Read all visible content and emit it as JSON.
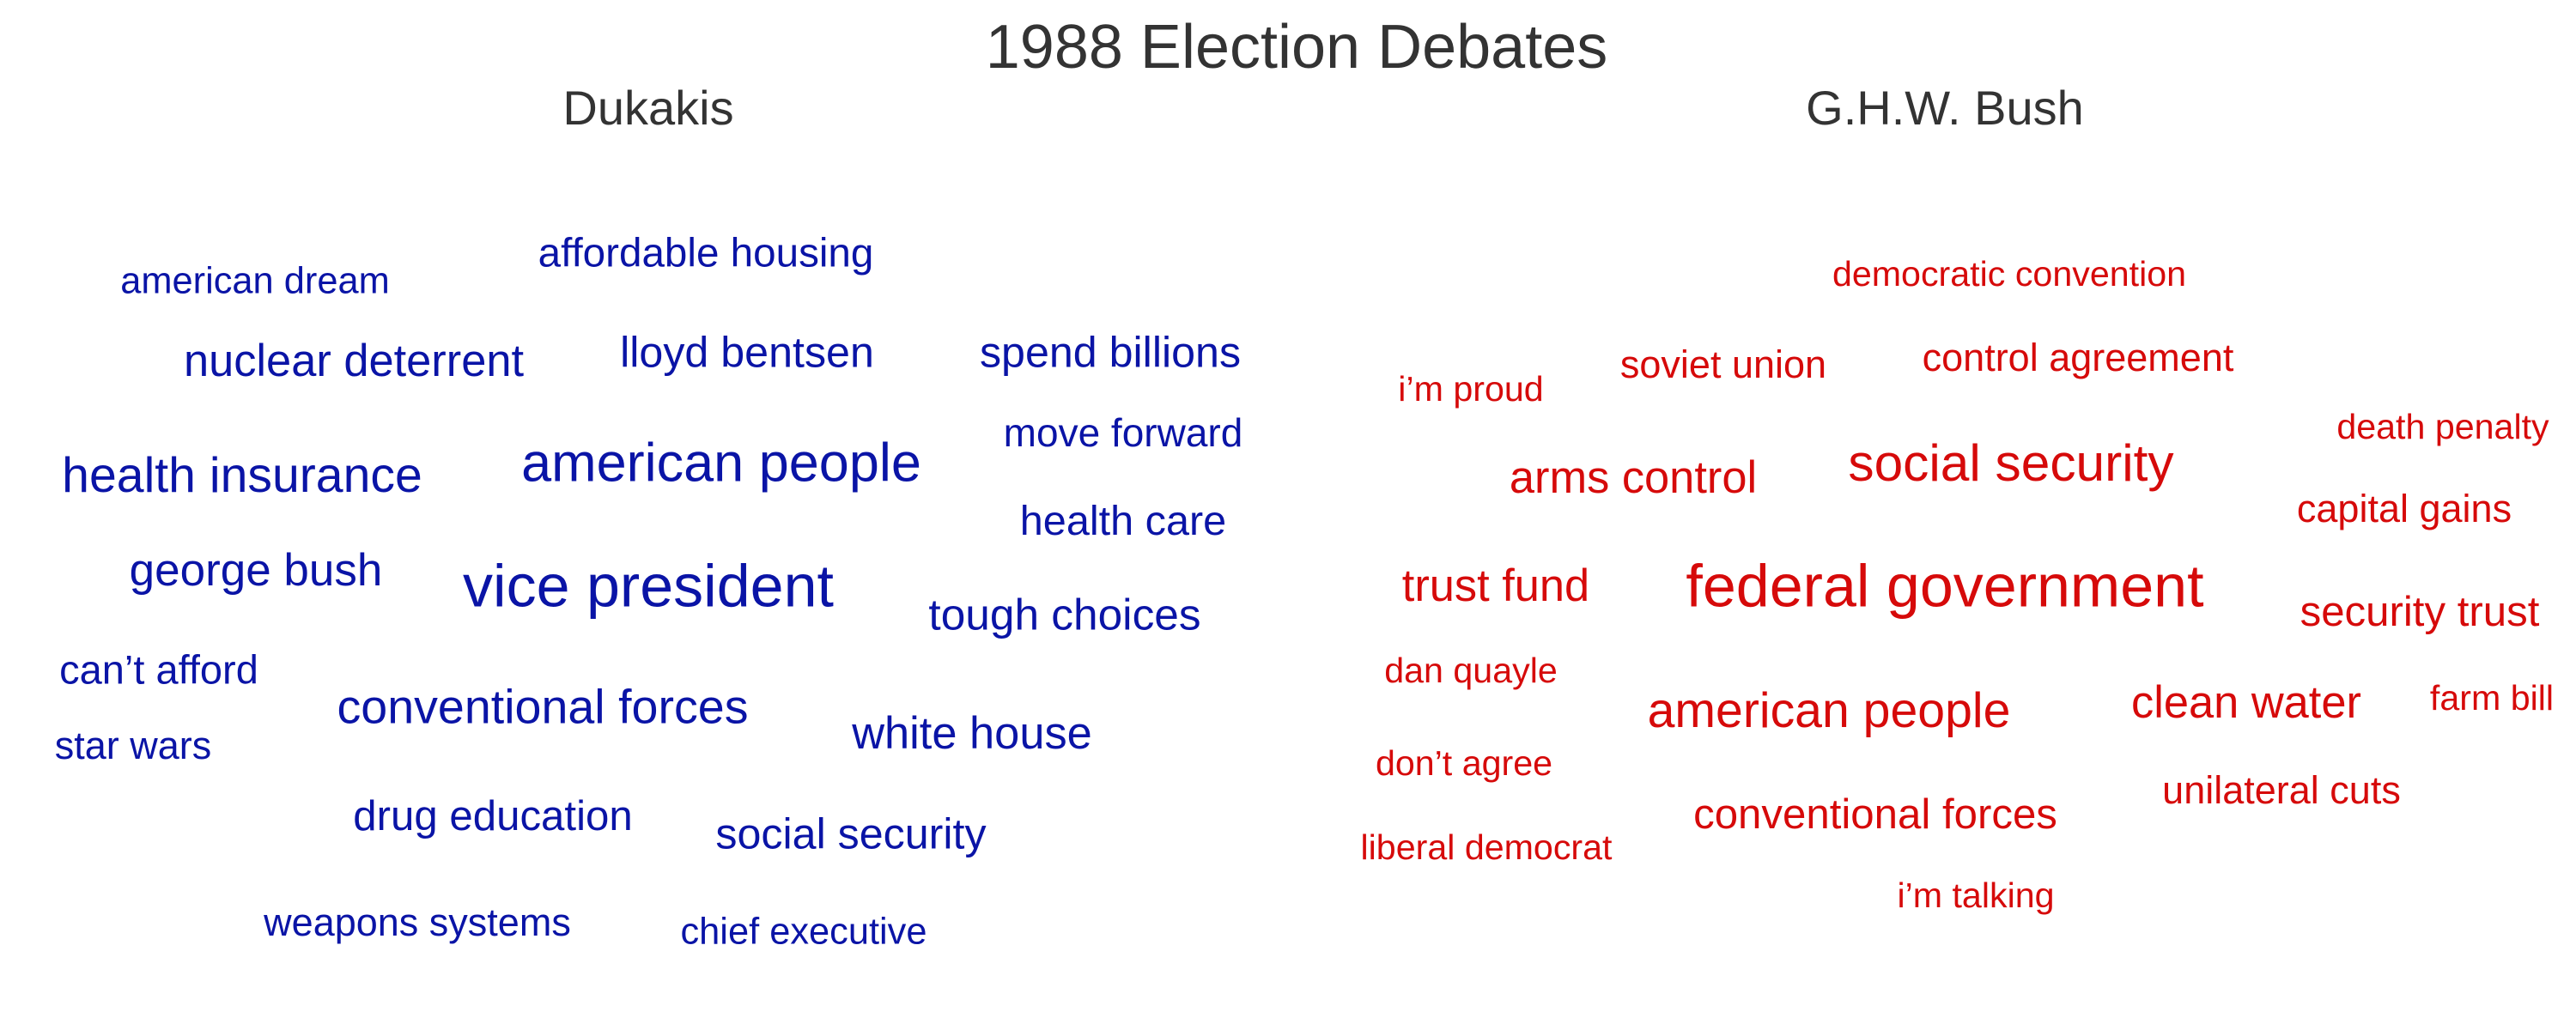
{
  "title": "1988 Election Debates",
  "chart_data": [
    {
      "type": "wordcloud",
      "title": "Dukakis",
      "color": "#0a14a6",
      "words": [
        {
          "text": "american dream",
          "weight": 0.17
        },
        {
          "text": "affordable housing",
          "weight": 0.3
        },
        {
          "text": "nuclear deterrent",
          "weight": 0.45
        },
        {
          "text": "lloyd bentsen",
          "weight": 0.38
        },
        {
          "text": "spend billions",
          "weight": 0.38
        },
        {
          "text": "move forward",
          "weight": 0.25
        },
        {
          "text": "health insurance",
          "weight": 0.6
        },
        {
          "text": "american people",
          "weight": 0.78
        },
        {
          "text": "health care",
          "weight": 0.33
        },
        {
          "text": "george bush",
          "weight": 0.47
        },
        {
          "text": "vice president",
          "weight": 1.0
        },
        {
          "text": "tough choices",
          "weight": 0.42
        },
        {
          "text": "can’t afford",
          "weight": 0.28
        },
        {
          "text": "conventional forces",
          "weight": 0.55
        },
        {
          "text": "star wars",
          "weight": 0.22
        },
        {
          "text": "white house",
          "weight": 0.45
        },
        {
          "text": "drug education",
          "weight": 0.35
        },
        {
          "text": "social security",
          "weight": 0.38
        },
        {
          "text": "weapons systems",
          "weight": 0.22
        },
        {
          "text": "chief executive",
          "weight": 0.17
        }
      ]
    },
    {
      "type": "wordcloud",
      "title": "G.H.W. Bush",
      "color": "#d60a0a",
      "words": [
        {
          "text": "democratic convention",
          "weight": 0.1
        },
        {
          "text": "i’m proud",
          "weight": 0.1
        },
        {
          "text": "soviet union",
          "weight": 0.22
        },
        {
          "text": "control agreement",
          "weight": 0.22
        },
        {
          "text": "death penalty",
          "weight": 0.1
        },
        {
          "text": "arms control",
          "weight": 0.45
        },
        {
          "text": "social security",
          "weight": 0.7
        },
        {
          "text": "capital gains",
          "weight": 0.22
        },
        {
          "text": "trust fund",
          "weight": 0.45
        },
        {
          "text": "federal government",
          "weight": 1.0
        },
        {
          "text": "security trust",
          "weight": 0.35
        },
        {
          "text": "dan quayle",
          "weight": 0.1
        },
        {
          "text": "american people",
          "weight": 0.6
        },
        {
          "text": "clean water",
          "weight": 0.45
        },
        {
          "text": "farm bill",
          "weight": 0.1
        },
        {
          "text": "don’t agree",
          "weight": 0.1
        },
        {
          "text": "unilateral cuts",
          "weight": 0.22
        },
        {
          "text": "conventional forces",
          "weight": 0.35
        },
        {
          "text": "liberal democrat",
          "weight": 0.1
        },
        {
          "text": "i’m talking",
          "weight": 0.1
        }
      ]
    }
  ]
}
